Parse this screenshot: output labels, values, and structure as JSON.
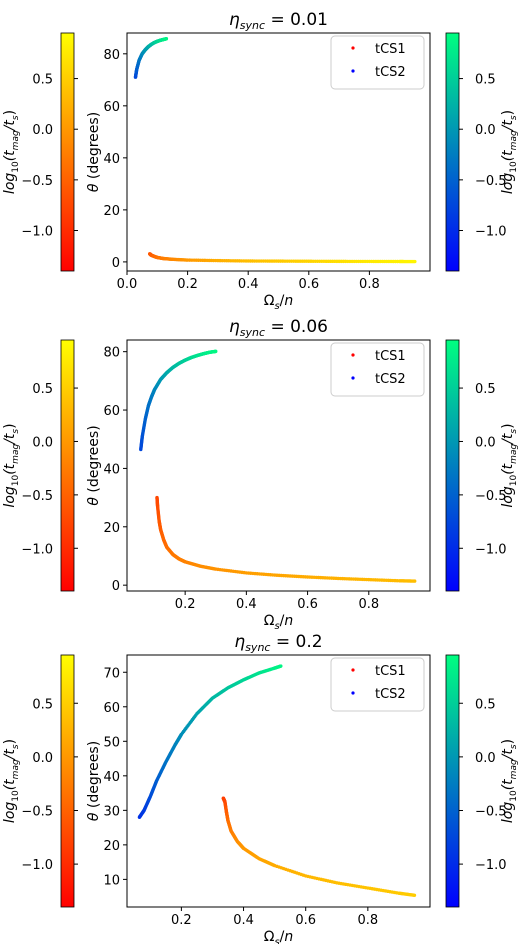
{
  "chart_data": [
    {
      "type": "scatter",
      "title": "η_sync = 0.01",
      "title_parts": {
        "sym": "η",
        "sub": "sync",
        "rest": " = 0.01"
      },
      "xlabel": "Ω_s/n",
      "ylabel": "θ (degrees)",
      "xlim": [
        0.0,
        1.0
      ],
      "ylim": [
        -3.5,
        88
      ],
      "xticks": [
        0.0,
        0.2,
        0.4,
        0.6,
        0.8
      ],
      "yticks": [
        0,
        20,
        40,
        60,
        80
      ],
      "grid": false,
      "legend": {
        "placement": "top-right",
        "entries": [
          "tCS1",
          "tCS2"
        ]
      },
      "series": [
        {
          "name": "tCS1",
          "colormap": "autumn",
          "x": [
            0.075,
            0.08,
            0.09,
            0.1,
            0.12,
            0.15,
            0.2,
            0.3,
            0.4,
            0.5,
            0.6,
            0.7,
            0.8,
            0.9,
            0.95
          ],
          "y": [
            3.1,
            2.6,
            2.1,
            1.7,
            1.3,
            1.0,
            0.7,
            0.5,
            0.35,
            0.3,
            0.25,
            0.2,
            0.18,
            0.15,
            0.14
          ],
          "c": [
            -0.6,
            -0.55,
            -0.45,
            -0.35,
            -0.25,
            -0.15,
            0.0,
            0.2,
            0.35,
            0.45,
            0.55,
            0.65,
            0.75,
            0.82,
            0.86
          ]
        },
        {
          "name": "tCS2",
          "colormap": "winter",
          "x": [
            0.028,
            0.032,
            0.04,
            0.05,
            0.06,
            0.07,
            0.08,
            0.09,
            0.1,
            0.11,
            0.12,
            0.13
          ],
          "y": [
            71,
            74,
            77.5,
            80,
            81.5,
            82.7,
            83.6,
            84.3,
            84.8,
            85.2,
            85.5,
            85.8
          ],
          "c": [
            -0.75,
            -0.55,
            -0.35,
            -0.15,
            0.0,
            0.15,
            0.3,
            0.42,
            0.55,
            0.65,
            0.75,
            0.85
          ]
        }
      ],
      "colorbars": [
        {
          "side": "left",
          "colormap": "autumn",
          "label": "log10(tmag/ts)",
          "ticks": [
            -1.0,
            -0.5,
            0.0,
            0.5
          ],
          "tick_labels": [
            "−1.0",
            "−0.5",
            "0.0",
            "0.5"
          ],
          "range": [
            -1.4,
            0.95
          ]
        },
        {
          "side": "right",
          "colormap": "winter",
          "label": "log10(tmag/ts)",
          "ticks": [
            -1.0,
            -0.5,
            0.0,
            0.5
          ],
          "tick_labels": [
            "−1.0",
            "−0.5",
            "0.0",
            "0.5"
          ],
          "range": [
            -1.4,
            0.95
          ]
        }
      ]
    },
    {
      "type": "scatter",
      "title": "η_sync = 0.06",
      "title_parts": {
        "sym": "η",
        "sub": "sync",
        "rest": " = 0.06"
      },
      "xlabel": "Ω_s/n",
      "ylabel": "θ (degrees)",
      "xlim": [
        0.01,
        1.0
      ],
      "ylim": [
        -2,
        84
      ],
      "xticks": [
        0.2,
        0.4,
        0.6,
        0.8
      ],
      "yticks": [
        0,
        20,
        40,
        60,
        80
      ],
      "grid": false,
      "legend": {
        "placement": "top-right",
        "entries": [
          "tCS1",
          "tCS2"
        ]
      },
      "series": [
        {
          "name": "tCS1",
          "colormap": "autumn",
          "x": [
            0.108,
            0.11,
            0.115,
            0.12,
            0.13,
            0.14,
            0.16,
            0.18,
            0.2,
            0.25,
            0.3,
            0.4,
            0.5,
            0.6,
            0.7,
            0.8,
            0.9,
            0.95
          ],
          "y": [
            30,
            27,
            22,
            19,
            15.5,
            13,
            10.5,
            9,
            8,
            6.5,
            5.5,
            4.2,
            3.4,
            2.8,
            2.3,
            1.9,
            1.5,
            1.4
          ],
          "c": [
            -0.75,
            -0.7,
            -0.6,
            -0.55,
            -0.45,
            -0.4,
            -0.3,
            -0.25,
            -0.2,
            -0.1,
            -0.05,
            0.05,
            0.12,
            0.18,
            0.23,
            0.28,
            0.32,
            0.35
          ]
        },
        {
          "name": "tCS2",
          "colormap": "winter",
          "x": [
            0.055,
            0.06,
            0.07,
            0.08,
            0.09,
            0.1,
            0.12,
            0.14,
            0.16,
            0.18,
            0.2,
            0.22,
            0.24,
            0.26,
            0.28,
            0.3
          ],
          "y": [
            46.5,
            51,
            57,
            61.5,
            64.5,
            67,
            70.5,
            72.8,
            74.6,
            76,
            77.1,
            78,
            78.7,
            79.3,
            79.8,
            80.1
          ],
          "c": [
            -0.75,
            -0.65,
            -0.5,
            -0.38,
            -0.28,
            -0.18,
            0.0,
            0.15,
            0.28,
            0.4,
            0.5,
            0.6,
            0.68,
            0.75,
            0.82,
            0.88
          ]
        }
      ],
      "colorbars": [
        {
          "side": "left",
          "colormap": "autumn",
          "label": "log10(tmag/ts)",
          "ticks": [
            -1.0,
            -0.5,
            0.0,
            0.5
          ],
          "tick_labels": [
            "−1.0",
            "−0.5",
            "0.0",
            "0.5"
          ],
          "range": [
            -1.4,
            0.95
          ]
        },
        {
          "side": "right",
          "colormap": "winter",
          "label": "log10(tmag/ts)",
          "ticks": [
            -1.0,
            -0.5,
            0.0,
            0.5
          ],
          "tick_labels": [
            "−1.0",
            "−0.5",
            "0.0",
            "0.5"
          ],
          "range": [
            -1.4,
            0.95
          ]
        }
      ]
    },
    {
      "type": "scatter",
      "title": "η_sync = 0.2",
      "title_parts": {
        "sym": "η",
        "sub": "sync",
        "rest": " = 0.2"
      },
      "xlabel": "Ω_s/n",
      "ylabel": "θ (degrees)",
      "xlim": [
        0.025,
        1.0
      ],
      "ylim": [
        2,
        75
      ],
      "xticks": [
        0.2,
        0.4,
        0.6,
        0.8
      ],
      "yticks": [
        10,
        20,
        30,
        40,
        50,
        60,
        70
      ],
      "grid": false,
      "legend": {
        "placement": "top-right",
        "entries": [
          "tCS1",
          "tCS2"
        ]
      },
      "series": [
        {
          "name": "tCS1",
          "colormap": "autumn",
          "x": [
            0.335,
            0.34,
            0.345,
            0.35,
            0.36,
            0.38,
            0.4,
            0.45,
            0.5,
            0.6,
            0.7,
            0.8,
            0.9,
            0.95
          ],
          "y": [
            33.5,
            32.5,
            29.5,
            27,
            24,
            21,
            19,
            16,
            14,
            11,
            9,
            7.5,
            6,
            5.4
          ],
          "c": [
            -0.85,
            -0.75,
            -0.55,
            -0.4,
            -0.25,
            -0.1,
            0.0,
            0.1,
            0.18,
            0.28,
            0.35,
            0.4,
            0.45,
            0.48
          ]
        },
        {
          "name": "tCS2",
          "colormap": "winter",
          "x": [
            0.065,
            0.08,
            0.1,
            0.12,
            0.15,
            0.18,
            0.2,
            0.25,
            0.3,
            0.35,
            0.4,
            0.45,
            0.5,
            0.52
          ],
          "y": [
            28,
            30,
            34,
            38.5,
            44,
            49,
            52,
            58,
            62.5,
            65.5,
            67.8,
            69.8,
            71.2,
            71.8
          ],
          "c": [
            -0.95,
            -0.85,
            -0.7,
            -0.55,
            -0.35,
            -0.2,
            -0.1,
            0.1,
            0.28,
            0.42,
            0.55,
            0.68,
            0.8,
            0.86
          ]
        }
      ],
      "colorbars": [
        {
          "side": "left",
          "colormap": "autumn",
          "label": "log10(tmag/ts)",
          "ticks": [
            -1.0,
            -0.5,
            0.0,
            0.5
          ],
          "tick_labels": [
            "−1.0",
            "−0.5",
            "0.0",
            "0.5"
          ],
          "range": [
            -1.4,
            0.95
          ]
        },
        {
          "side": "right",
          "colormap": "winter",
          "label": "log10(tmag/ts)",
          "ticks": [
            -1.0,
            -0.5,
            0.0,
            0.5
          ],
          "tick_labels": [
            "−1.0",
            "−0.5",
            "0.0",
            "0.5"
          ],
          "range": [
            -1.4,
            0.95
          ]
        }
      ]
    }
  ]
}
